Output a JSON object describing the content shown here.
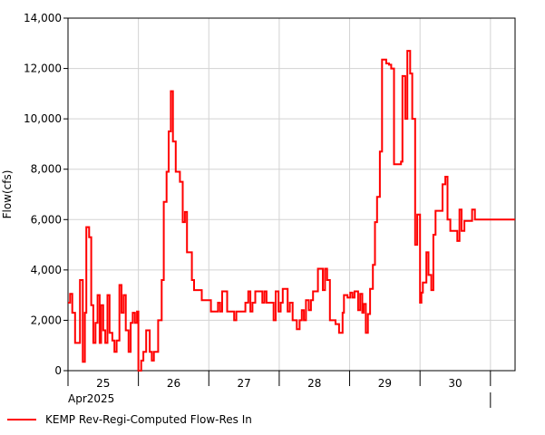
{
  "chart_data": {
    "type": "line",
    "title": "",
    "xlabel": "",
    "ylabel": "Flow(cfs)",
    "ylim": [
      0,
      14000
    ],
    "y_ticks": [
      0,
      2000,
      4000,
      6000,
      8000,
      10000,
      12000,
      14000
    ],
    "y_tick_labels": [
      "0",
      "2,000",
      "4,000",
      "6,000",
      "8,000",
      "10,000",
      "12,000",
      "14,000"
    ],
    "x_unit": "day of April 2025",
    "xlim": [
      24.5,
      30.85
    ],
    "day_labels": [
      "25",
      "26",
      "27",
      "28",
      "29",
      "30"
    ],
    "day_label_positions": [
      25,
      26,
      27,
      28,
      29,
      30
    ],
    "month_label": "Apr2025",
    "grid": true,
    "line_style": "step",
    "series": [
      {
        "name": "KEMP Rev-Regi-Computed Flow-Res In",
        "color": "#ff0000",
        "points": [
          [
            24.5,
            2700
          ],
          [
            24.53,
            3050
          ],
          [
            24.56,
            2300
          ],
          [
            24.6,
            1100
          ],
          [
            24.67,
            3600
          ],
          [
            24.71,
            350
          ],
          [
            24.74,
            2300
          ],
          [
            24.76,
            5700
          ],
          [
            24.8,
            5300
          ],
          [
            24.83,
            2600
          ],
          [
            24.86,
            1100
          ],
          [
            24.89,
            1900
          ],
          [
            24.92,
            3000
          ],
          [
            24.95,
            1100
          ],
          [
            24.97,
            2600
          ],
          [
            25.0,
            1600
          ],
          [
            25.03,
            1100
          ],
          [
            25.06,
            3000
          ],
          [
            25.09,
            1500
          ],
          [
            25.13,
            1200
          ],
          [
            25.16,
            750
          ],
          [
            25.19,
            1200
          ],
          [
            25.23,
            3400
          ],
          [
            25.26,
            2300
          ],
          [
            25.29,
            3000
          ],
          [
            25.32,
            1600
          ],
          [
            25.36,
            750
          ],
          [
            25.39,
            1900
          ],
          [
            25.42,
            2300
          ],
          [
            25.45,
            1900
          ],
          [
            25.48,
            2350
          ],
          [
            25.5,
            0
          ],
          [
            25.54,
            400
          ],
          [
            25.57,
            750
          ],
          [
            25.61,
            1600
          ],
          [
            25.66,
            750
          ],
          [
            25.69,
            400
          ],
          [
            25.72,
            750
          ],
          [
            25.78,
            2000
          ],
          [
            25.83,
            3600
          ],
          [
            25.86,
            6700
          ],
          [
            25.9,
            7900
          ],
          [
            25.93,
            9500
          ],
          [
            25.96,
            11100
          ],
          [
            25.99,
            9100
          ],
          [
            26.03,
            7900
          ],
          [
            26.09,
            7500
          ],
          [
            26.13,
            5900
          ],
          [
            26.16,
            6300
          ],
          [
            26.19,
            4700
          ],
          [
            26.26,
            3600
          ],
          [
            26.29,
            3200
          ],
          [
            26.4,
            2800
          ],
          [
            26.53,
            2350
          ],
          [
            26.63,
            2700
          ],
          [
            26.66,
            2350
          ],
          [
            26.69,
            3150
          ],
          [
            26.76,
            2350
          ],
          [
            26.86,
            2000
          ],
          [
            26.89,
            2350
          ],
          [
            27.02,
            2700
          ],
          [
            27.06,
            3150
          ],
          [
            27.09,
            2350
          ],
          [
            27.12,
            2700
          ],
          [
            27.16,
            3150
          ],
          [
            27.26,
            2700
          ],
          [
            27.29,
            3150
          ],
          [
            27.32,
            2700
          ],
          [
            27.42,
            2000
          ],
          [
            27.45,
            3150
          ],
          [
            27.49,
            2350
          ],
          [
            27.52,
            2700
          ],
          [
            27.55,
            3250
          ],
          [
            27.62,
            2350
          ],
          [
            27.65,
            2700
          ],
          [
            27.69,
            2000
          ],
          [
            27.75,
            1650
          ],
          [
            27.79,
            2000
          ],
          [
            27.82,
            2400
          ],
          [
            27.85,
            2000
          ],
          [
            27.88,
            2800
          ],
          [
            27.92,
            2400
          ],
          [
            27.95,
            2800
          ],
          [
            27.98,
            3150
          ],
          [
            28.05,
            4050
          ],
          [
            28.12,
            3200
          ],
          [
            28.15,
            4050
          ],
          [
            28.18,
            3600
          ],
          [
            28.22,
            2000
          ],
          [
            28.3,
            1850
          ],
          [
            28.35,
            1500
          ],
          [
            28.4,
            2300
          ],
          [
            28.42,
            3000
          ],
          [
            28.47,
            2900
          ],
          [
            28.51,
            3100
          ],
          [
            28.54,
            2900
          ],
          [
            28.57,
            3150
          ],
          [
            28.62,
            2400
          ],
          [
            28.65,
            3050
          ],
          [
            28.68,
            2300
          ],
          [
            28.7,
            2650
          ],
          [
            28.73,
            1500
          ],
          [
            28.76,
            2250
          ],
          [
            28.79,
            3250
          ],
          [
            28.83,
            4200
          ],
          [
            28.86,
            5900
          ],
          [
            28.89,
            6900
          ],
          [
            28.93,
            8700
          ],
          [
            28.96,
            12350
          ],
          [
            29.02,
            12200
          ],
          [
            29.06,
            12150
          ],
          [
            29.09,
            12000
          ],
          [
            29.13,
            8200
          ],
          [
            29.23,
            8300
          ],
          [
            29.25,
            11700
          ],
          [
            29.29,
            10000
          ],
          [
            29.32,
            12700
          ],
          [
            29.36,
            11800
          ],
          [
            29.39,
            10000
          ],
          [
            29.43,
            5000
          ],
          [
            29.46,
            6200
          ],
          [
            29.5,
            2700
          ],
          [
            29.52,
            3100
          ],
          [
            29.54,
            3500
          ],
          [
            29.59,
            4700
          ],
          [
            29.62,
            3800
          ],
          [
            29.66,
            3200
          ],
          [
            29.69,
            5400
          ],
          [
            29.72,
            6350
          ],
          [
            29.82,
            7400
          ],
          [
            29.86,
            7700
          ],
          [
            29.89,
            6000
          ],
          [
            29.93,
            5550
          ],
          [
            30.03,
            5150
          ],
          [
            30.06,
            6400
          ],
          [
            30.09,
            5550
          ],
          [
            30.13,
            5950
          ],
          [
            30.24,
            6400
          ],
          [
            30.28,
            6000
          ],
          [
            30.4,
            6000
          ]
        ]
      }
    ]
  },
  "legend": {
    "label": "KEMP Rev-Regi-Computed Flow-Res In"
  }
}
